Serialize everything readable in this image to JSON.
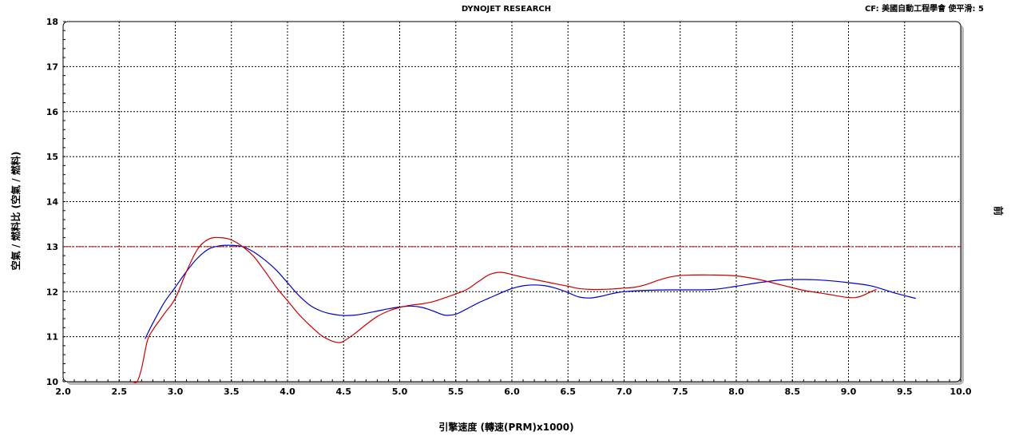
{
  "chart_data": {
    "type": "line",
    "title": "DYNOJET RESEARCH",
    "subtitle": "CF: 美國自動工程學會  使平滑: 5",
    "xlabel": "引擎速度 (轉速(PRM)x1000)",
    "ylabel": "空氣 / 燃料比 (空氣 / 燃料)",
    "y2label": "前",
    "xlim": [
      2.0,
      10.0
    ],
    "ylim": [
      10,
      18
    ],
    "xticks": [
      "2.0",
      "2.5",
      "3.0",
      "3.5",
      "4.0",
      "4.5",
      "5.0",
      "5.5",
      "6.0",
      "6.5",
      "7.0",
      "7.5",
      "8.0",
      "8.5",
      "9.0",
      "9.5",
      "10.0"
    ],
    "yticks": [
      "10",
      "11",
      "12",
      "13",
      "14",
      "15",
      "16",
      "17",
      "18"
    ],
    "grid": true,
    "reference_line": {
      "y": 13.0,
      "color": "#cc0000",
      "style": "dash-dot"
    },
    "series": [
      {
        "color": "#0000cc",
        "x": [
          2.73,
          2.8,
          2.9,
          3.0,
          3.1,
          3.2,
          3.3,
          3.4,
          3.5,
          3.6,
          3.7,
          3.8,
          3.9,
          4.0,
          4.1,
          4.2,
          4.3,
          4.4,
          4.5,
          4.6,
          4.7,
          4.8,
          4.9,
          5.0,
          5.1,
          5.2,
          5.3,
          5.4,
          5.5,
          5.6,
          5.7,
          5.8,
          5.9,
          6.0,
          6.1,
          6.2,
          6.3,
          6.4,
          6.5,
          6.6,
          6.7,
          6.8,
          6.9,
          7.0,
          7.2,
          7.4,
          7.6,
          7.8,
          8.0,
          8.2,
          8.4,
          8.6,
          8.8,
          9.0,
          9.2,
          9.4,
          9.6
        ],
        "y": [
          10.95,
          11.3,
          11.75,
          12.1,
          12.45,
          12.75,
          12.95,
          13.02,
          13.03,
          13.0,
          12.88,
          12.7,
          12.48,
          12.2,
          11.92,
          11.7,
          11.57,
          11.5,
          11.47,
          11.48,
          11.52,
          11.57,
          11.62,
          11.66,
          11.68,
          11.65,
          11.57,
          11.48,
          11.5,
          11.62,
          11.75,
          11.86,
          11.97,
          12.07,
          12.13,
          12.15,
          12.13,
          12.07,
          11.98,
          11.88,
          11.86,
          11.9,
          11.96,
          12.0,
          12.03,
          12.04,
          12.04,
          12.05,
          12.12,
          12.2,
          12.26,
          12.27,
          12.25,
          12.2,
          12.13,
          11.98,
          11.85
        ]
      },
      {
        "color": "#cc0000",
        "x": [
          2.62,
          2.66,
          2.7,
          2.75,
          2.8,
          2.9,
          3.0,
          3.1,
          3.2,
          3.3,
          3.4,
          3.5,
          3.6,
          3.7,
          3.8,
          3.9,
          4.0,
          4.1,
          4.2,
          4.3,
          4.4,
          4.46,
          4.5,
          4.6,
          4.7,
          4.8,
          4.9,
          5.0,
          5.1,
          5.2,
          5.3,
          5.4,
          5.5,
          5.6,
          5.7,
          5.8,
          5.9,
          6.0,
          6.1,
          6.2,
          6.3,
          6.4,
          6.5,
          6.6,
          6.7,
          6.8,
          6.9,
          7.0,
          7.1,
          7.2,
          7.3,
          7.4,
          7.5,
          7.6,
          7.8,
          8.0,
          8.2,
          8.4,
          8.6,
          8.8,
          9.0,
          9.1,
          9.2,
          9.25
        ],
        "y": [
          10.0,
          10.0,
          10.3,
          10.9,
          11.15,
          11.5,
          11.85,
          12.45,
          12.95,
          13.17,
          13.2,
          13.15,
          13.0,
          12.78,
          12.45,
          12.1,
          11.8,
          11.5,
          11.25,
          11.03,
          10.9,
          10.87,
          10.9,
          11.07,
          11.27,
          11.45,
          11.57,
          11.65,
          11.7,
          11.73,
          11.78,
          11.86,
          11.95,
          12.05,
          12.22,
          12.38,
          12.43,
          12.38,
          12.32,
          12.27,
          12.22,
          12.17,
          12.12,
          12.07,
          12.05,
          12.05,
          12.06,
          12.08,
          12.1,
          12.16,
          12.25,
          12.32,
          12.36,
          12.37,
          12.37,
          12.35,
          12.27,
          12.15,
          12.03,
          11.95,
          11.87,
          11.89,
          12.0,
          12.05
        ]
      }
    ]
  }
}
